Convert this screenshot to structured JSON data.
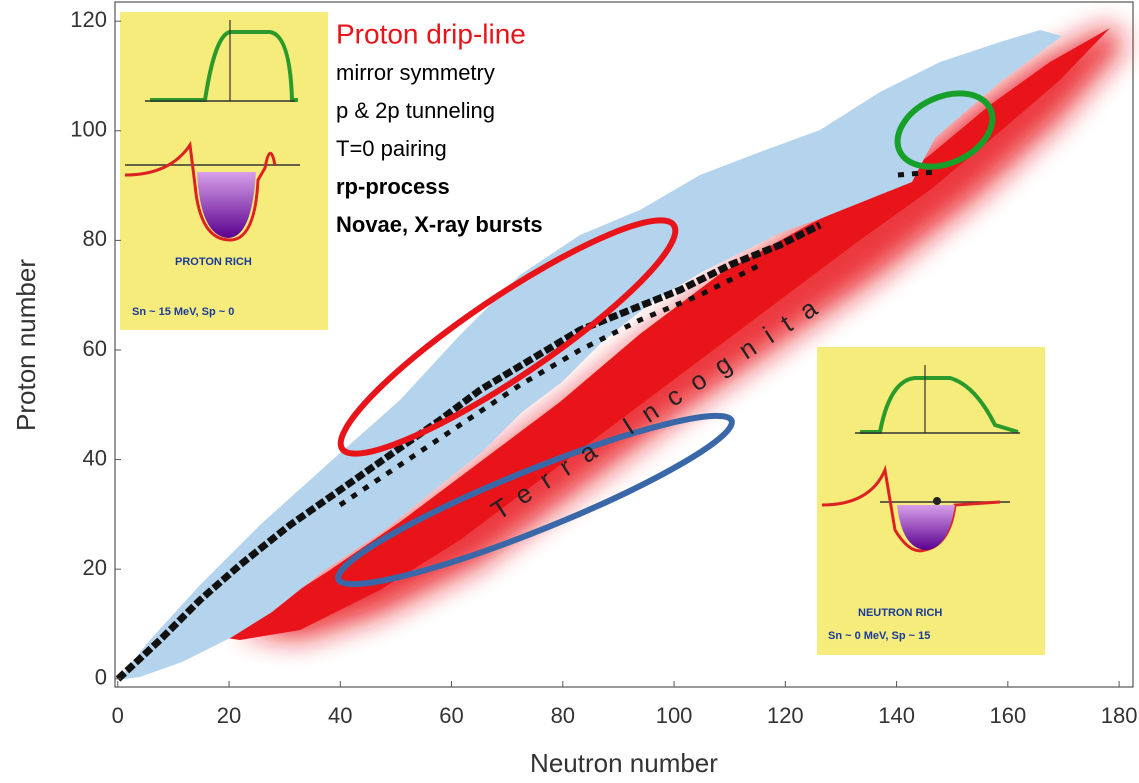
{
  "chart_data": {
    "type": "nuclide-chart",
    "x_label": "Neutron number",
    "y_label": "Proton number",
    "xlim": [
      -0.5,
      182.5
    ],
    "ylim": [
      -1.5,
      123.5
    ],
    "xticks": [
      0,
      20,
      40,
      60,
      80,
      100,
      120,
      140,
      160,
      180
    ],
    "yticks": [
      0,
      20,
      40,
      60,
      80,
      100,
      120
    ],
    "annotations": {
      "title": "Proton drip-line",
      "lines": [
        "mirror symmetry",
        "p & 2p tunneling",
        "T=0 pairing"
      ],
      "bold_lines": [
        "rp-process",
        "Novae, X-ray bursts"
      ],
      "region": "Terra Incognita"
    },
    "insets": [
      {
        "label": "PROTON RICH",
        "energies": "Sn ~ 15 MeV, Sp ~ 0"
      },
      {
        "label": "NEUTRON RICH",
        "energies": "Sn ~ 0 MeV, Sp ~ 15"
      }
    ]
  }
}
